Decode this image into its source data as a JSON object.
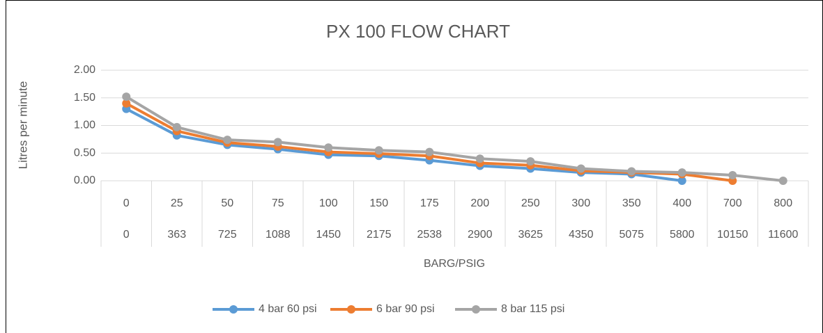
{
  "chart_data": {
    "type": "line",
    "title": "PX 100 FLOW CHART",
    "y_label": "Litres per minute",
    "x_label": "BARG/PSIG",
    "categories": [
      "0",
      "25",
      "50",
      "75",
      "100",
      "150",
      "175",
      "200",
      "250",
      "300",
      "350",
      "400",
      "700",
      "800"
    ],
    "subcategories": [
      "0",
      "363",
      "725",
      "1088",
      "1450",
      "2175",
      "2538",
      "2900",
      "3625",
      "4350",
      "5075",
      "5800",
      "10150",
      "11600"
    ],
    "series": [
      {
        "name": "4 bar 60 psi",
        "color": "#5b9bd5",
        "values": [
          1.3,
          0.82,
          0.65,
          0.57,
          0.47,
          0.45,
          0.37,
          0.27,
          0.22,
          0.15,
          0.12,
          0.0,
          null,
          null
        ]
      },
      {
        "name": "6 bar 90 psi",
        "color": "#ed7d31",
        "values": [
          1.4,
          0.9,
          0.69,
          0.62,
          0.52,
          0.49,
          0.45,
          0.32,
          0.28,
          0.18,
          0.15,
          0.12,
          0.0,
          null
        ]
      },
      {
        "name": "8 bar 115 psi",
        "color": "#a5a5a5",
        "values": [
          1.52,
          0.97,
          0.74,
          0.7,
          0.6,
          0.55,
          0.52,
          0.4,
          0.35,
          0.22,
          0.17,
          0.15,
          0.1,
          0.0
        ]
      }
    ],
    "ylim": [
      0,
      2
    ],
    "yticks": [
      {
        "value": 0,
        "label": "0.00"
      },
      {
        "value": 0.5,
        "label": "0.50"
      },
      {
        "value": 1,
        "label": "1.00"
      },
      {
        "value": 1.5,
        "label": "1.50"
      },
      {
        "value": 2,
        "label": "2.00"
      }
    ],
    "grid": true,
    "legend": "bottom"
  }
}
